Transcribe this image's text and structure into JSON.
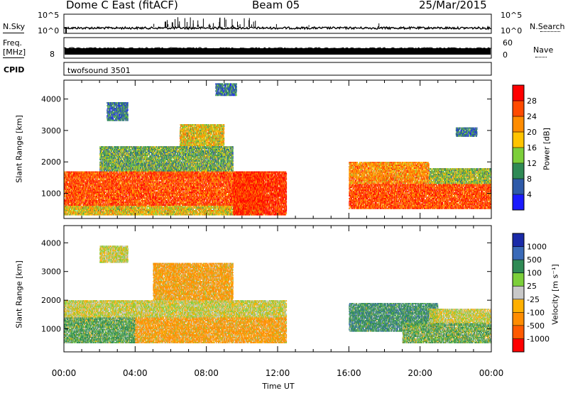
{
  "header": {
    "station": "Dome C East (fitACF)",
    "beam": "Beam 05",
    "date": "25/Mar/2015"
  },
  "strip_panels": {
    "nsky_label": "N.Sky",
    "nsky_ticks": [
      "10^5",
      "10^0"
    ],
    "nsearch_label": "N.Search",
    "nsearch_ticks": [
      "10^5",
      "10^0"
    ],
    "freq_label": "Freq.",
    "freq_unit": "[MHz]",
    "freq_ticks": [
      "8"
    ],
    "nave_label": "Nave",
    "nave_ticks": [
      "60",
      "0"
    ],
    "cpid_label": "CPID",
    "cpid_value": "twofsound 3501"
  },
  "x_axis": {
    "label": "Time UT",
    "ticks": [
      "00:00",
      "04:00",
      "08:00",
      "12:00",
      "16:00",
      "20:00",
      "00:00"
    ]
  },
  "colors": {
    "power": [
      "#1a1aff",
      "#2e5aa8",
      "#2f8a55",
      "#7ccf3a",
      "#ffc400",
      "#ff8c00",
      "#ff4a00",
      "#ff0000"
    ],
    "velocity": [
      "#ff0000",
      "#ff5a00",
      "#ff8c00",
      "#ffb000",
      "#c8c8c8",
      "#7ccf3a",
      "#2f8a55",
      "#3a6ab8",
      "#1a2aa8"
    ]
  },
  "chart_data": [
    {
      "type": "heatmap",
      "title": "",
      "xlabel": "Time UT",
      "ylabel": "Slant Range [km]",
      "x_range_hours": [
        0,
        24
      ],
      "ylim": [
        200,
        4600
      ],
      "y_ticks": [
        1000,
        2000,
        3000,
        4000
      ],
      "colorbar": {
        "label": "Power [dB]",
        "ticks": [
          4,
          8,
          12,
          16,
          20,
          24,
          28
        ],
        "range": [
          0,
          32
        ]
      },
      "echo_regions": [
        {
          "t0": 0.0,
          "t1": 11.2,
          "r0": 600,
          "r1": 1700,
          "value": 26
        },
        {
          "t0": 0.0,
          "t1": 11.2,
          "r0": 300,
          "r1": 600,
          "value": 18
        },
        {
          "t0": 2.0,
          "t1": 9.5,
          "r0": 1700,
          "r1": 2500,
          "value": 12
        },
        {
          "t0": 2.4,
          "t1": 3.6,
          "r0": 3300,
          "r1": 3900,
          "value": 8
        },
        {
          "t0": 6.5,
          "t1": 9.0,
          "r0": 2500,
          "r1": 3200,
          "value": 18
        },
        {
          "t0": 8.5,
          "t1": 9.7,
          "r0": 4100,
          "r1": 4500,
          "value": 8
        },
        {
          "t0": 9.5,
          "t1": 12.5,
          "r0": 300,
          "r1": 1700,
          "value": 28
        },
        {
          "t0": 16.0,
          "t1": 24.0,
          "r0": 500,
          "r1": 1300,
          "value": 26
        },
        {
          "t0": 16.0,
          "t1": 20.5,
          "r0": 1300,
          "r1": 2000,
          "value": 22
        },
        {
          "t0": 20.5,
          "t1": 24.0,
          "r0": 1300,
          "r1": 1800,
          "value": 14
        },
        {
          "t0": 22.0,
          "t1": 23.2,
          "r0": 2800,
          "r1": 3100,
          "value": 8
        }
      ]
    },
    {
      "type": "heatmap",
      "title": "",
      "xlabel": "Time UT",
      "ylabel": "Slant Range [km]",
      "x_range_hours": [
        0,
        24
      ],
      "ylim": [
        200,
        4600
      ],
      "y_ticks": [
        1000,
        2000,
        3000,
        4000
      ],
      "colorbar": {
        "label": "Velocity [m s⁻¹]",
        "ticks": [
          1000,
          500,
          100,
          25,
          -25,
          -100,
          -500,
          -1000
        ]
      },
      "echo_regions": [
        {
          "t0": 0.0,
          "t1": 4.0,
          "r0": 500,
          "r1": 1400,
          "value": 150
        },
        {
          "t0": 4.0,
          "t1": 12.5,
          "r0": 500,
          "r1": 1400,
          "value": -150
        },
        {
          "t0": 0.0,
          "t1": 12.5,
          "r0": 1400,
          "r1": 2000,
          "value": 0
        },
        {
          "t0": 5.0,
          "t1": 9.5,
          "r0": 2000,
          "r1": 3300,
          "value": -150
        },
        {
          "t0": 2.0,
          "t1": 3.6,
          "r0": 3300,
          "r1": 3900,
          "value": 0
        },
        {
          "t0": 16.0,
          "t1": 21.0,
          "r0": 900,
          "r1": 1900,
          "value": 300
        },
        {
          "t0": 19.0,
          "t1": 24.0,
          "r0": 500,
          "r1": 1200,
          "value": 100
        },
        {
          "t0": 20.5,
          "t1": 24.0,
          "r0": 1200,
          "r1": 1700,
          "value": 0
        }
      ]
    }
  ]
}
